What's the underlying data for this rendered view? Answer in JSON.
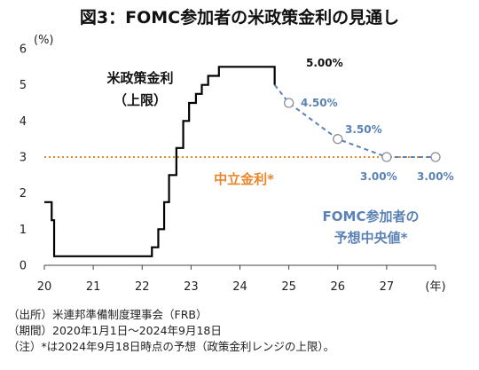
{
  "title": "図3：FOMC参加者の米政策金利の見通し",
  "chart_data": {
    "type": "line",
    "y_unit": "(%)",
    "x_unit": "(年)",
    "xlim": [
      20,
      28
    ],
    "ylim": [
      0,
      6
    ],
    "x_ticks": [
      "20",
      "21",
      "22",
      "23",
      "24",
      "25",
      "26",
      "27",
      "(年)"
    ],
    "y_ticks": [
      "0",
      "1",
      "2",
      "3",
      "4",
      "5",
      "6"
    ],
    "grid": false,
    "series": [
      {
        "name": "米政策金利",
        "name_line2": "（上限）",
        "color": "#000000",
        "style": "step",
        "points": [
          [
            20.0,
            1.75
          ],
          [
            20.15,
            1.75
          ],
          [
            20.15,
            1.25
          ],
          [
            20.2,
            1.25
          ],
          [
            20.2,
            0.25
          ],
          [
            22.2,
            0.25
          ],
          [
            22.2,
            0.5
          ],
          [
            22.33,
            0.5
          ],
          [
            22.33,
            1.0
          ],
          [
            22.45,
            1.0
          ],
          [
            22.45,
            1.75
          ],
          [
            22.55,
            1.75
          ],
          [
            22.55,
            2.5
          ],
          [
            22.7,
            2.5
          ],
          [
            22.7,
            3.25
          ],
          [
            22.84,
            3.25
          ],
          [
            22.84,
            4.0
          ],
          [
            22.96,
            4.0
          ],
          [
            22.96,
            4.5
          ],
          [
            23.1,
            4.5
          ],
          [
            23.1,
            4.75
          ],
          [
            23.22,
            4.75
          ],
          [
            23.22,
            5.0
          ],
          [
            23.35,
            5.0
          ],
          [
            23.35,
            5.25
          ],
          [
            23.57,
            5.25
          ],
          [
            23.57,
            5.5
          ],
          [
            24.71,
            5.5
          ],
          [
            24.71,
            5.0
          ]
        ]
      },
      {
        "name": "FOMC参加者の",
        "name_line2": "予想中央値*",
        "color": "#5b82b5",
        "style": "dashed",
        "points": [
          [
            24.71,
            5.0
          ],
          [
            25,
            4.5
          ],
          [
            26,
            3.5
          ],
          [
            27,
            3.0
          ],
          [
            28,
            3.0
          ]
        ],
        "markers": [
          [
            25,
            4.5
          ],
          [
            26,
            3.5
          ],
          [
            27,
            3.0
          ],
          [
            28,
            3.0
          ]
        ]
      },
      {
        "name": "中立金利*",
        "color": "#e8862e",
        "style": "dotted",
        "value": 3.0
      }
    ],
    "annotations": [
      {
        "text": "5.00%",
        "color": "#111111"
      },
      {
        "text": "4.50%",
        "color": "#5b82b5"
      },
      {
        "text": "3.50%",
        "color": "#5b82b5"
      },
      {
        "text": "3.00%",
        "color": "#5b82b5"
      },
      {
        "text": "3.00%",
        "color": "#5b82b5"
      }
    ]
  },
  "notes": [
    "（出所）米連邦準備制度理事会（FRB）",
    "（期間）2020年1月1日～2024年9月18日",
    "（注）*は2024年9月18日時点の予想（政策金利レンジの上限）。"
  ]
}
